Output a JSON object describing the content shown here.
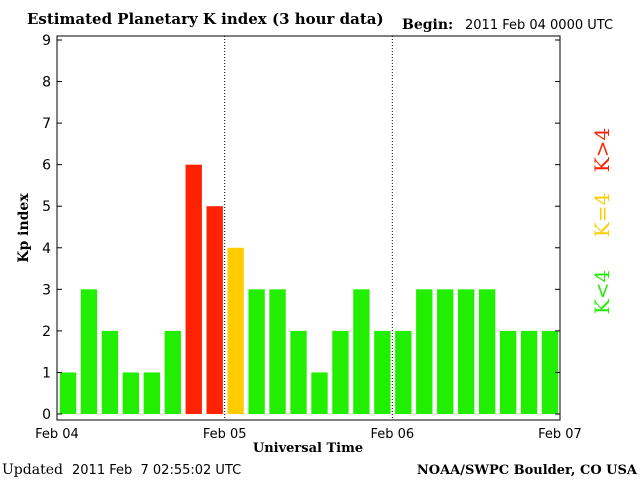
{
  "header": {
    "title": "Estimated Planetary K index (3 hour data)",
    "begin_label": "Begin:",
    "begin_value": "2011 Feb 04 0000 UTC"
  },
  "footer": {
    "updated_label": "Updated",
    "updated_value": "2011 Feb  7 02:55:02 UTC",
    "source": "NOAA/SWPC Boulder, CO USA"
  },
  "legend": {
    "high": "K>4",
    "equal": "K=4",
    "low": "K<4"
  },
  "colors": {
    "low": "#22ee00",
    "equal": "#ffcc00",
    "high": "#ff2200",
    "axis": "#000000",
    "grid": "#000000",
    "background": "#ffffff"
  },
  "chart_data": {
    "type": "bar",
    "title": "Estimated Planetary K index (3 hour data)",
    "xlabel": "Universal Time",
    "ylabel": "Kp index",
    "ylim": [
      0,
      9
    ],
    "yticks": [
      "0",
      "1",
      "2",
      "3",
      "4",
      "5",
      "6",
      "7",
      "8",
      "9"
    ],
    "xtick_labels": [
      "Feb 04",
      "Feb 05",
      "Feb 06",
      "Feb 07"
    ],
    "day_dividers": [
      "Feb 05",
      "Feb 06"
    ],
    "grid": false,
    "categories": [
      "Feb 04 00",
      "Feb 04 03",
      "Feb 04 06",
      "Feb 04 09",
      "Feb 04 12",
      "Feb 04 15",
      "Feb 04 18",
      "Feb 04 21",
      "Feb 05 00",
      "Feb 05 03",
      "Feb 05 06",
      "Feb 05 09",
      "Feb 05 12",
      "Feb 05 15",
      "Feb 05 18",
      "Feb 05 21",
      "Feb 06 00",
      "Feb 06 03",
      "Feb 06 06",
      "Feb 06 09",
      "Feb 06 12",
      "Feb 06 15",
      "Feb 06 18",
      "Feb 06 21"
    ],
    "values": [
      1,
      3,
      2,
      1,
      1,
      2,
      6,
      5,
      4,
      3,
      3,
      2,
      1,
      2,
      3,
      2,
      2,
      3,
      3,
      3,
      3,
      2,
      2,
      2
    ]
  }
}
